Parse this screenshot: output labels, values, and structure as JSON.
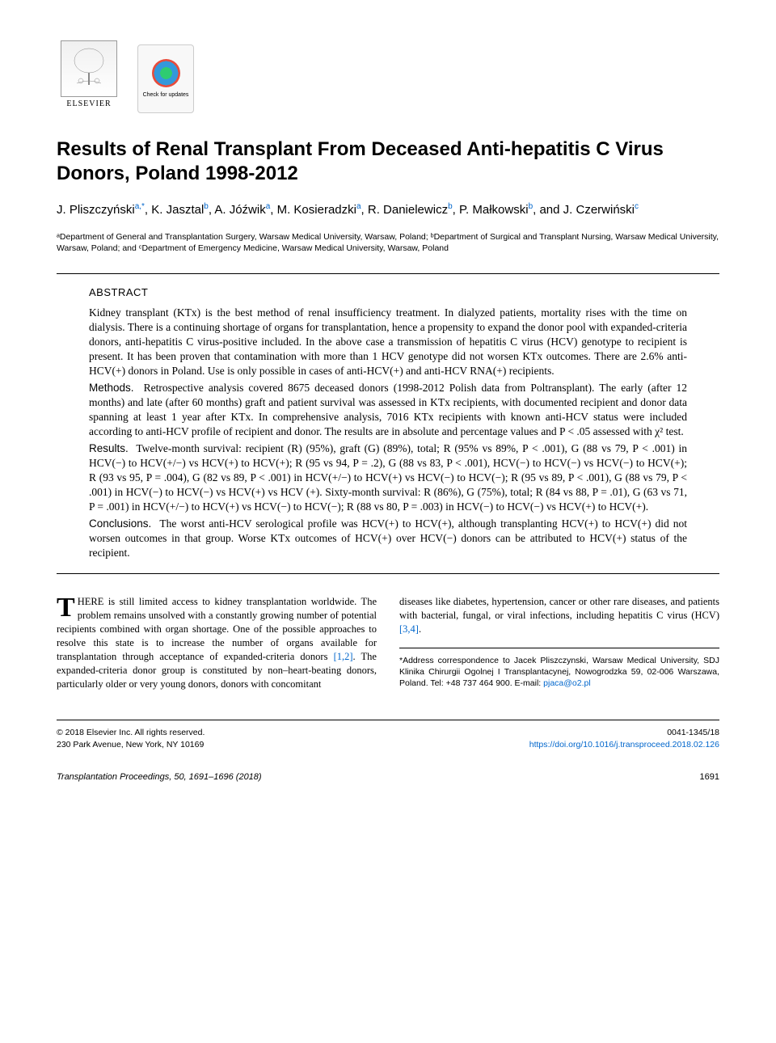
{
  "logos": {
    "elsevier_label": "ELSEVIER",
    "crossmark_label": "Check for updates"
  },
  "title": "Results of Renal Transplant From Deceased Anti-hepatitis C Virus Donors, Poland 1998-2012",
  "authors_html": "J. Pliszczyński<sup class='sup-link'>a,*</sup>, K. Jasztal<sup class='sup-link'>b</sup>, A. Jóźwik<sup class='sup-link'>a</sup>, M. Kosieradzki<sup class='sup-link'>a</sup>, R. Danielewicz<sup class='sup-link'>b</sup>, P. Małkowski<sup class='sup-link'>b</sup>, and J. Czerwiński<sup class='sup-link'>c</sup>",
  "affiliations": "ᵃDepartment of General and Transplantation Surgery, Warsaw Medical University, Warsaw, Poland; ᵇDepartment of Surgical and Transplant Nursing, Warsaw Medical University, Warsaw, Poland; and ᶜDepartment of Emergency Medicine, Warsaw Medical University, Warsaw, Poland",
  "abstract": {
    "heading": "ABSTRACT",
    "intro": "Kidney transplant (KTx) is the best method of renal insufficiency treatment. In dialyzed patients, mortality rises with the time on dialysis. There is a continuing shortage of organs for transplantation, hence a propensity to expand the donor pool with expanded-criteria donors, anti-hepatitis C virus-positive included. In the above case a transmission of hepatitis C virus (HCV) genotype to recipient is present. It has been proven that contamination with more than 1 HCV genotype did not worsen KTx outcomes. There are 2.6% anti-HCV(+) donors in Poland. Use is only possible in cases of anti-HCV(+) and anti-HCV RNA(+) recipients.",
    "methods_label": "Methods.",
    "methods": "Retrospective analysis covered 8675 deceased donors (1998-2012 Polish data from Poltransplant). The early (after 12 months) and late (after 60 months) graft and patient survival was assessed in KTx recipients, with documented recipient and donor data spanning at least 1 year after KTx. In comprehensive analysis, 7016 KTx recipients with known anti-HCV status were included according to anti-HCV profile of recipient and donor. The results are in absolute and percentage values and P < .05 assessed with χ² test.",
    "results_label": "Results.",
    "results": "Twelve-month survival: recipient (R) (95%), graft (G) (89%), total; R (95% vs 89%, P < .001), G (88 vs 79, P < .001) in HCV(−) to HCV(+/−) vs HCV(+) to HCV(+); R (95 vs 94, P = .2), G (88 vs 83, P < .001), HCV(−) to HCV(−) vs HCV(−) to HCV(+); R (93 vs 95, P = .004), G (82 vs 89, P < .001) in HCV(+/−) to HCV(+) vs HCV(−) to HCV(−); R (95 vs 89, P < .001), G (88 vs 79, P < .001) in HCV(−) to HCV(−) vs HCV(+) vs HCV (+). Sixty-month survival: R (86%), G (75%), total; R (84 vs 88, P = .01), G (63 vs 71, P = .001) in HCV(+/−) to HCV(+) vs HCV(−) to HCV(−); R (88 vs 80, P = .003) in HCV(−) to HCV(−) vs HCV(+) to HCV(+).",
    "conclusions_label": "Conclusions.",
    "conclusions": "The worst anti-HCV serological profile was HCV(+) to HCV(+), although transplanting HCV(+) to HCV(+) did not worsen outcomes in that group. Worse KTx outcomes of HCV(+) over HCV(−) donors can be attributed to HCV(+) status of the recipient."
  },
  "body": {
    "col1_dropcap": "T",
    "col1_text": "HERE is still limited access to kidney transplantation worldwide. The problem remains unsolved with a constantly growing number of potential recipients combined with organ shortage. One of the possible approaches to resolve this state is to increase the number of organs available for transplantation through acceptance of expanded-criteria donors ",
    "col1_ref1": "[1,2]",
    "col1_text2": ". The expanded-criteria donor group is constituted by non–heart-beating donors, particularly older or very young donors, donors with concomitant",
    "col2_text": "diseases like diabetes, hypertension, cancer or other rare diseases, and patients with bacterial, fungal, or viral infections, including hepatitis C virus (HCV) ",
    "col2_ref1": "[3,4]",
    "col2_text2": "."
  },
  "correspondence": {
    "text": "*Address correspondence to Jacek Pliszczynski, Warsaw Medical University, SDJ Klinika Chirurgii Ogolnej I Transplantacynej, Nowogrodzka 59, 02-006 Warszawa, Poland. Tel: +48 737 464 900. E-mail: ",
    "email": "pjaca@o2.pl"
  },
  "footer": {
    "copyright1": "© 2018 Elsevier Inc. All rights reserved.",
    "copyright2": "230 Park Avenue, New York, NY 10169",
    "issn": "0041-1345/18",
    "doi": "https://doi.org/10.1016/j.transproceed.2018.02.126"
  },
  "page_footer": {
    "citation": "Transplantation Proceedings, 50, 1691–1696 (2018)",
    "page": "1691"
  },
  "colors": {
    "link": "#0066cc",
    "text": "#000000",
    "border": "#000000"
  }
}
